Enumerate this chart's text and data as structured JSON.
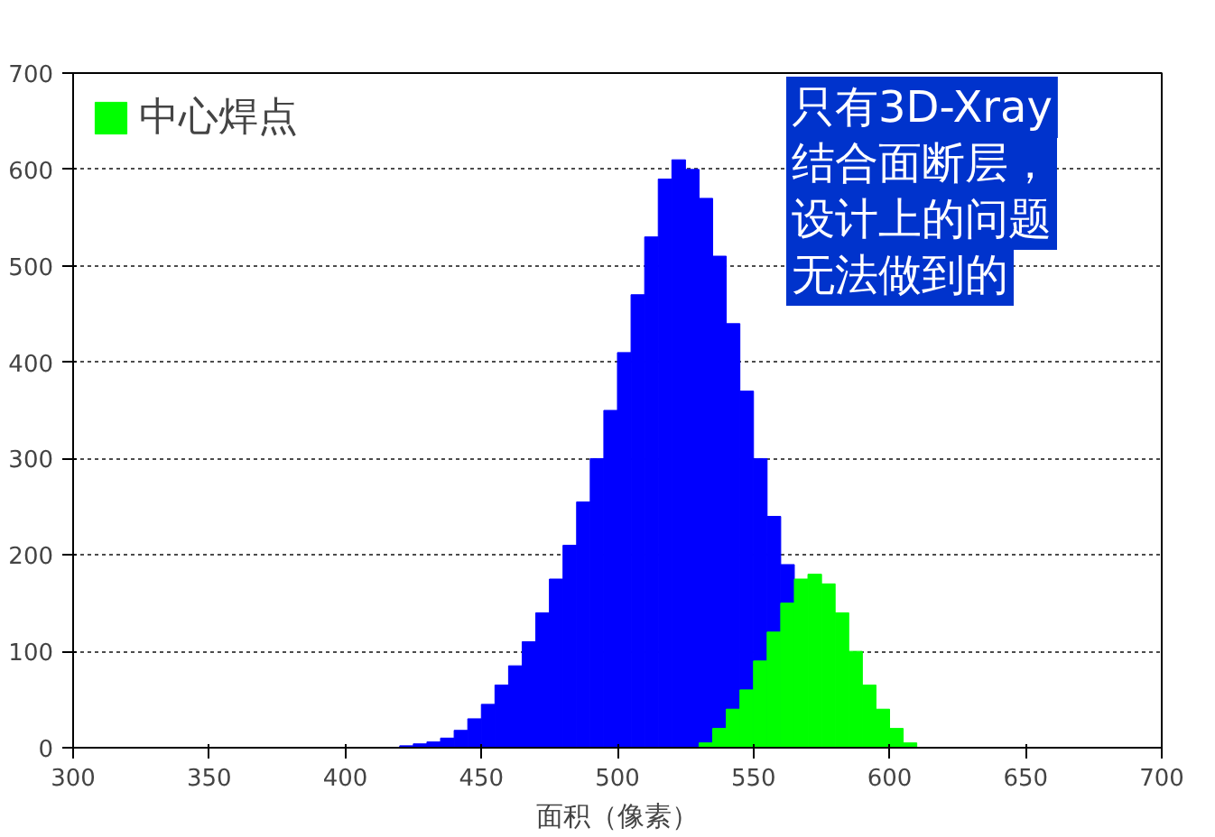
{
  "chart_data": {
    "type": "histogram",
    "xlabel": "面积（像素）",
    "bins": [
      420,
      425,
      430,
      435,
      440,
      445,
      450,
      455,
      460,
      465,
      470,
      475,
      480,
      485,
      490,
      495,
      500,
      505,
      510,
      515,
      520,
      525,
      530,
      535,
      540,
      545,
      550,
      555,
      560,
      565,
      570,
      575,
      580,
      585,
      590,
      595,
      600,
      605,
      610
    ],
    "series": [
      {
        "color": "#0000ff",
        "values": [
          2,
          4,
          6,
          10,
          18,
          30,
          45,
          65,
          85,
          110,
          140,
          175,
          210,
          255,
          300,
          350,
          410,
          470,
          530,
          590,
          610,
          600,
          570,
          510,
          440,
          370,
          300,
          240,
          190,
          null,
          null,
          null,
          null,
          null,
          null,
          null,
          null,
          null
        ]
      },
      {
        "name": "中心焊点",
        "color": "#00ff00",
        "values": [
          null,
          null,
          null,
          null,
          null,
          null,
          null,
          null,
          null,
          null,
          null,
          null,
          null,
          null,
          null,
          null,
          null,
          null,
          null,
          null,
          null,
          null,
          5,
          20,
          40,
          60,
          90,
          120,
          150,
          175,
          180,
          170,
          140,
          100,
          65,
          40,
          20,
          5
        ]
      }
    ],
    "xlim": [
      300,
      700
    ],
    "xticks": [
      300,
      350,
      400,
      450,
      500,
      550,
      600,
      650,
      700
    ],
    "ylim": [
      0,
      700
    ],
    "yticks": [
      0,
      100,
      200,
      300,
      400,
      500,
      600,
      700
    ],
    "grid": "y",
    "legend": "top left",
    "annotations": [
      "只有3D-Xray",
      "结合面断层，",
      "设计上的问题",
      "无法做到的"
    ]
  }
}
